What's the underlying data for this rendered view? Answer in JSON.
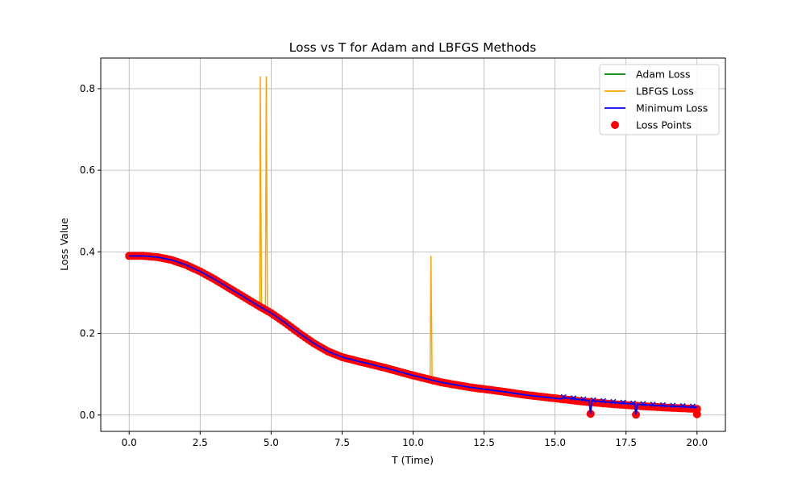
{
  "chart_data": {
    "type": "line",
    "title": "Loss vs T for Adam and LBFGS Methods",
    "xlabel": "T (Time)",
    "ylabel": "Loss Value",
    "xlim": [
      -1.0,
      21.0
    ],
    "ylim": [
      -0.04,
      0.875
    ],
    "grid": true,
    "legend_position": "top-right",
    "x_ticks": [
      0.0,
      2.5,
      5.0,
      7.5,
      10.0,
      12.5,
      15.0,
      17.5,
      20.0
    ],
    "x_tick_labels": [
      "0.0",
      "2.5",
      "5.0",
      "7.5",
      "10.0",
      "12.5",
      "15.0",
      "17.5",
      "20.0"
    ],
    "y_ticks": [
      0.0,
      0.2,
      0.4,
      0.6,
      0.8
    ],
    "y_tick_labels": [
      "0.0",
      "0.2",
      "0.4",
      "0.6",
      "0.8"
    ],
    "base_curve": {
      "x": [
        0,
        0.5,
        1,
        1.5,
        2,
        2.5,
        3,
        3.5,
        4,
        4.5,
        5,
        5.5,
        6,
        6.5,
        7,
        7.5,
        8,
        9,
        10,
        11,
        12,
        13,
        14,
        15,
        16,
        17,
        18,
        19,
        20
      ],
      "y": [
        0.39,
        0.39,
        0.387,
        0.38,
        0.368,
        0.352,
        0.333,
        0.312,
        0.291,
        0.27,
        0.25,
        0.226,
        0.2,
        0.176,
        0.156,
        0.142,
        0.133,
        0.116,
        0.097,
        0.08,
        0.068,
        0.059,
        0.049,
        0.041,
        0.033,
        0.027,
        0.022,
        0.018,
        0.015
      ]
    },
    "series": [
      {
        "name": "Adam Loss",
        "color": "#008000",
        "style": "line"
      },
      {
        "name": "LBFGS Loss",
        "color": "#ffa500",
        "style": "line",
        "spikes": [
          {
            "x": 4.62,
            "y": 0.83
          },
          {
            "x": 4.83,
            "y": 0.83
          },
          {
            "x": 10.63,
            "y": 0.39
          }
        ]
      },
      {
        "name": "Minimum Loss",
        "color": "#0000ff",
        "style": "line",
        "dips": [
          {
            "x": 16.25,
            "y": 0.003
          },
          {
            "x": 17.85,
            "y": 0.001
          }
        ]
      },
      {
        "name": "Loss Points",
        "color": "#ff0000",
        "style": "scatter",
        "outliers": [
          {
            "x": 16.25,
            "y": 0.003
          },
          {
            "x": 17.85,
            "y": 0.001
          },
          {
            "x": 20.0,
            "y": 0.002
          }
        ]
      }
    ]
  }
}
